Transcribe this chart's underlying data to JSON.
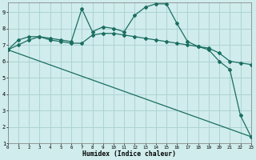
{
  "xlabel": "Humidex (Indice chaleur)",
  "background_color": "#d0ecec",
  "grid_color": "#a8d0d0",
  "line_color": "#1a6e60",
  "xmin": 0,
  "xmax": 23,
  "ymin": 1,
  "ymax": 9.6,
  "series1_x": [
    0,
    1,
    2,
    3,
    4,
    5,
    6,
    7,
    8,
    9,
    10,
    11,
    12,
    13,
    14,
    15,
    16,
    17,
    18,
    19,
    20,
    21,
    22,
    23
  ],
  "series1_y": [
    6.7,
    7.3,
    7.5,
    7.5,
    7.4,
    7.3,
    7.2,
    9.2,
    7.8,
    8.1,
    8.0,
    7.8,
    8.8,
    9.3,
    9.5,
    9.5,
    8.3,
    7.2,
    6.9,
    6.7,
    6.0,
    5.5,
    2.7,
    1.4
  ],
  "series2_x": [
    0,
    1,
    2,
    3,
    4,
    5,
    6,
    7,
    8,
    9,
    10,
    11,
    12,
    13,
    14,
    15,
    16,
    17,
    18,
    19,
    20,
    21,
    22,
    23
  ],
  "series2_y": [
    6.7,
    7.0,
    7.3,
    7.5,
    7.3,
    7.2,
    7.1,
    7.1,
    7.6,
    7.7,
    7.7,
    7.6,
    7.5,
    7.4,
    7.3,
    7.2,
    7.1,
    7.0,
    6.9,
    6.8,
    6.5,
    6.0,
    5.9,
    5.8
  ],
  "series3_x": [
    0,
    23
  ],
  "series3_y": [
    6.7,
    1.4
  ],
  "xtick_labels": [
    "0",
    "1",
    "2",
    "3",
    "4",
    "5",
    "6",
    "7",
    "8",
    "9",
    "10",
    "11",
    "12",
    "13",
    "14",
    "15",
    "16",
    "17",
    "18",
    "19",
    "20",
    "21",
    "22",
    "23"
  ],
  "ytick_labels": [
    "1",
    "2",
    "3",
    "4",
    "5",
    "6",
    "7",
    "8",
    "9"
  ]
}
